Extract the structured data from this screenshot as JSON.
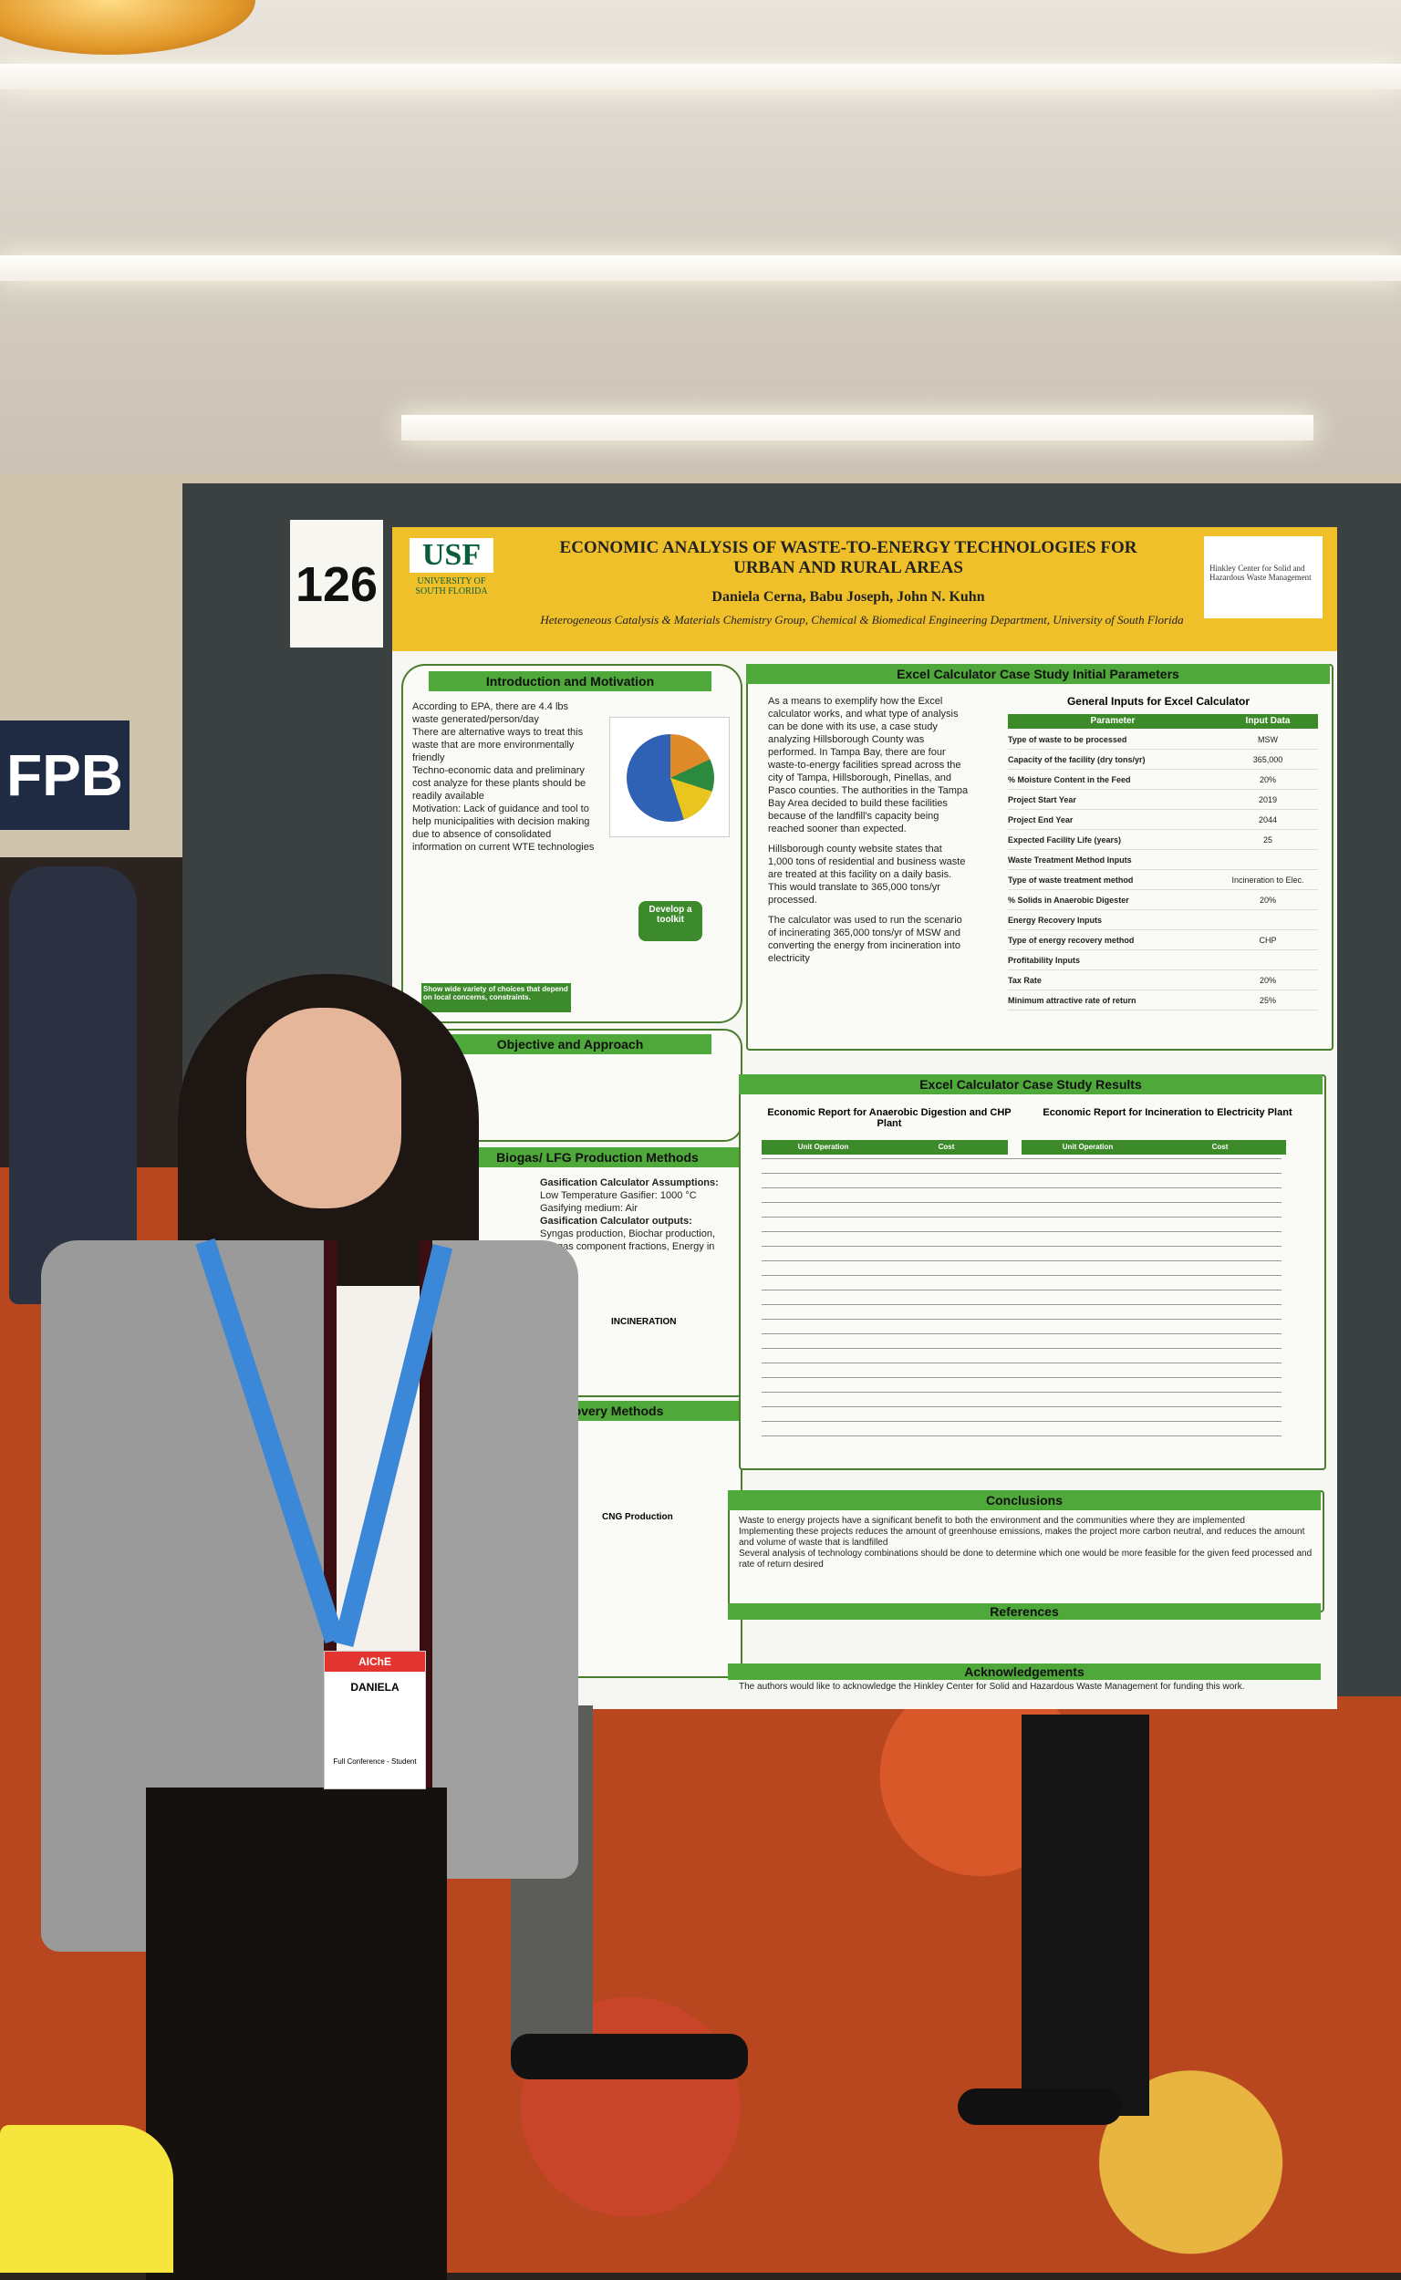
{
  "booth_number": "126",
  "side_sign": "FPB",
  "poster": {
    "logo_text": "USF",
    "university": "UNIVERSITY OF SOUTH FLORIDA",
    "title_line1": "ECONOMIC ANALYSIS OF WASTE-TO-ENERGY TECHNOLOGIES FOR",
    "title_line2": "URBAN AND RURAL AREAS",
    "authors": "Daniela Cerna, Babu Joseph, John N. Kuhn",
    "affiliation": "Heterogeneous Catalysis & Materials Chemistry Group, Chemical & Biomedical Engineering Department, University of South Florida",
    "partner_logo": "Hinkley Center for Solid and Hazardous Waste Management",
    "sections": {
      "intro": "Introduction and Motivation",
      "objective": "Objective and Approach",
      "biogas": "Biogas/ LFG Production Methods",
      "energy": "gy Recovery Methods",
      "excel_params": "Excel Calculator Case Study Initial Parameters",
      "excel_results": "Excel Calculator Case Study Results",
      "conclusions": "Conclusions",
      "references": "References",
      "acknowledgements": "Acknowledgements"
    },
    "intro_bullets": [
      "According to EPA, there are 4.4 lbs waste generated/person/day",
      "There are alternative ways to treat this waste that are more environmentally friendly",
      "Techno-economic data and preliminary cost analyze for these plants should be readily available",
      "Motivation: Lack of guidance and tool to help municipalities with decision making due to absence of consolidated information on current WTE technologies"
    ],
    "develop_toolkit": "Develop a toolkit",
    "show_variety": "Show wide variety of choices that depend on local concerns, constraints.",
    "params_text": [
      "As a means to exemplify how the Excel calculator works, and what type of analysis can be done with its use, a case study analyzing Hillsborough County was performed. In Tampa Bay, there are four waste-to-energy facilities spread across the city of Tampa, Hillsborough, Pinellas, and Pasco counties. The authorities in the Tampa Bay Area decided to build these facilities because of the landfill's capacity being reached sooner than expected.",
      "Hillsborough county website states that 1,000 tons of residential and business waste are treated at this facility on a daily basis. This would translate to 365,000 tons/yr processed.",
      "The calculator was used to run the scenario of incinerating 365,000 tons/yr of MSW and converting the energy from incineration into electricity"
    ],
    "inputs_title": "General Inputs for Excel Calculator",
    "inputs_header": [
      "Parameter",
      "Input Data"
    ],
    "inputs_rows": [
      [
        "Type of waste to be processed",
        "MSW"
      ],
      [
        "Capacity of the facility (dry tons/yr)",
        "365,000"
      ],
      [
        "% Moisture Content in the Feed",
        "20%"
      ],
      [
        "Project Start Year",
        "2019"
      ],
      [
        "Project End Year",
        "2044"
      ],
      [
        "Expected Facility Life (years)",
        "25"
      ],
      [
        "Waste Treatment Method Inputs",
        ""
      ],
      [
        "Type of waste treatment method",
        "Incineration to Elec."
      ],
      [
        "% Solids in Anaerobic Digester",
        "20%"
      ],
      [
        "Energy Recovery Inputs",
        ""
      ],
      [
        "Type of energy recovery method",
        "CHP"
      ],
      [
        "Profitability Inputs",
        ""
      ],
      [
        "Tax Rate",
        "20%"
      ],
      [
        "Minimum attractive rate of return",
        "25%"
      ]
    ],
    "report_left_title": "Economic Report for Anaerobic Digestion and CHP Plant",
    "report_right_title": "Economic Report for Incineration to Electricity Plant",
    "report_header": [
      "Unit Operation",
      "Cost"
    ],
    "incineration_label": "INCINERATION",
    "cng_label": "CNG Production",
    "gasification_assumptions": "Gasification Calculator Assumptions:",
    "gasification_items": [
      "Low Temperature Gasifier: 1000 °C",
      "Gasifying medium: Air"
    ],
    "gasification_outputs": "Gasification Calculator outputs:",
    "gasification_output_items": [
      "Syngas production, Biochar production, Syngas component fractions, Energy in syngas"
    ],
    "conclusions": [
      "Waste to energy projects have a significant benefit to both the environment and the communities where they are implemented",
      "Implementing these projects reduces the amount of greenhouse emissions, makes the project more carbon neutral, and reduces the amount and volume of waste that is landfilled",
      "Several analysis of technology combinations should be done to determine which one would be more feasible for the given feed processed and rate of return desired"
    ],
    "acknowledgement_text": "The authors would like to acknowledge the Hinkley Center for Solid and Hazardous Waste Management for funding this work."
  },
  "badge": {
    "org": "AIChE",
    "name": "DANIELA",
    "type": "Full Conference - Student"
  },
  "lanyard_text": "AIChE"
}
